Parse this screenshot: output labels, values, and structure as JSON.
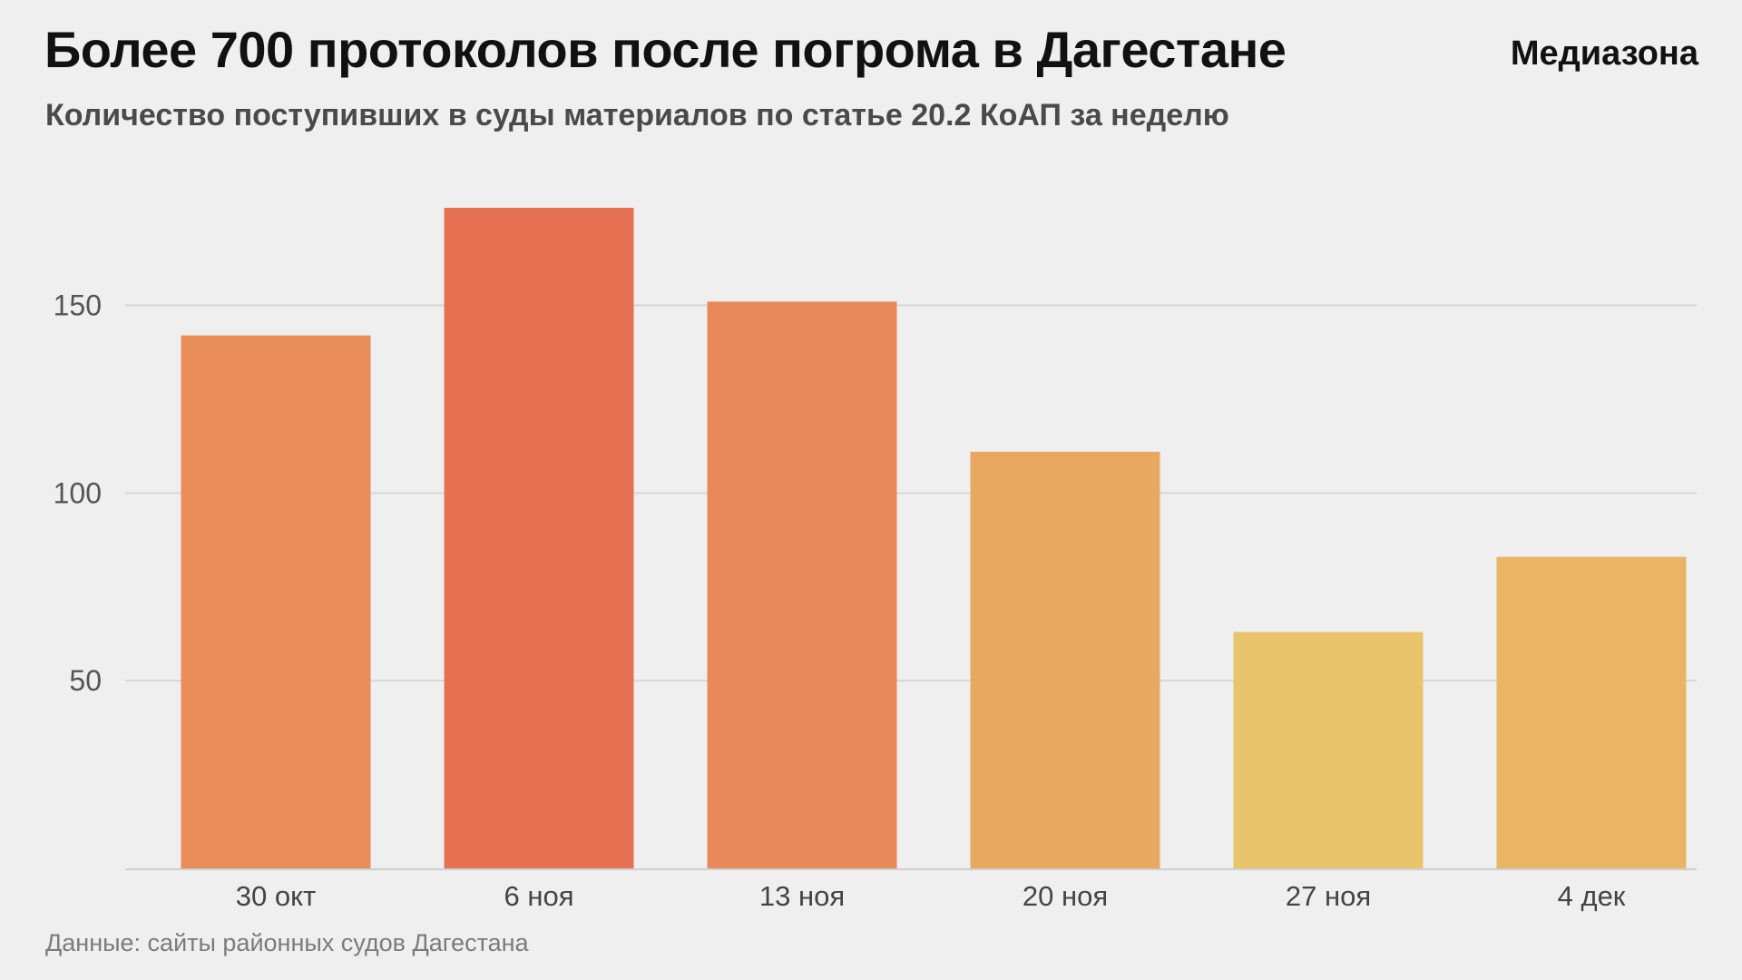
{
  "header": {
    "title": "Более 700 протоколов после погрома в Дагестане",
    "brand": "Медиазона",
    "subtitle": "Количество поступивших в суды материалов по статье 20.2 КоАП за неделю"
  },
  "footer": {
    "source": "Данные: сайты районных судов Дагестана"
  },
  "chart_data": {
    "type": "bar",
    "title": "Более 700 протоколов после погрома в Дагестане",
    "subtitle": "Количество поступивших в суды материалов по статье 20.2 КоАП за неделю",
    "xlabel": "",
    "ylabel": "",
    "categories": [
      "30 окт",
      "6 ноя",
      "13 ноя",
      "20 ноя",
      "27 ноя",
      "4 дек"
    ],
    "values": [
      142,
      176,
      151,
      111,
      63,
      83
    ],
    "colors": [
      "#e98e59",
      "#e67052",
      "#e8895a",
      "#e9a862",
      "#e9c46c",
      "#e9b565"
    ],
    "yticks": [
      50,
      100,
      150
    ],
    "ylim": [
      0,
      176
    ],
    "grid": true,
    "legend": "none"
  }
}
